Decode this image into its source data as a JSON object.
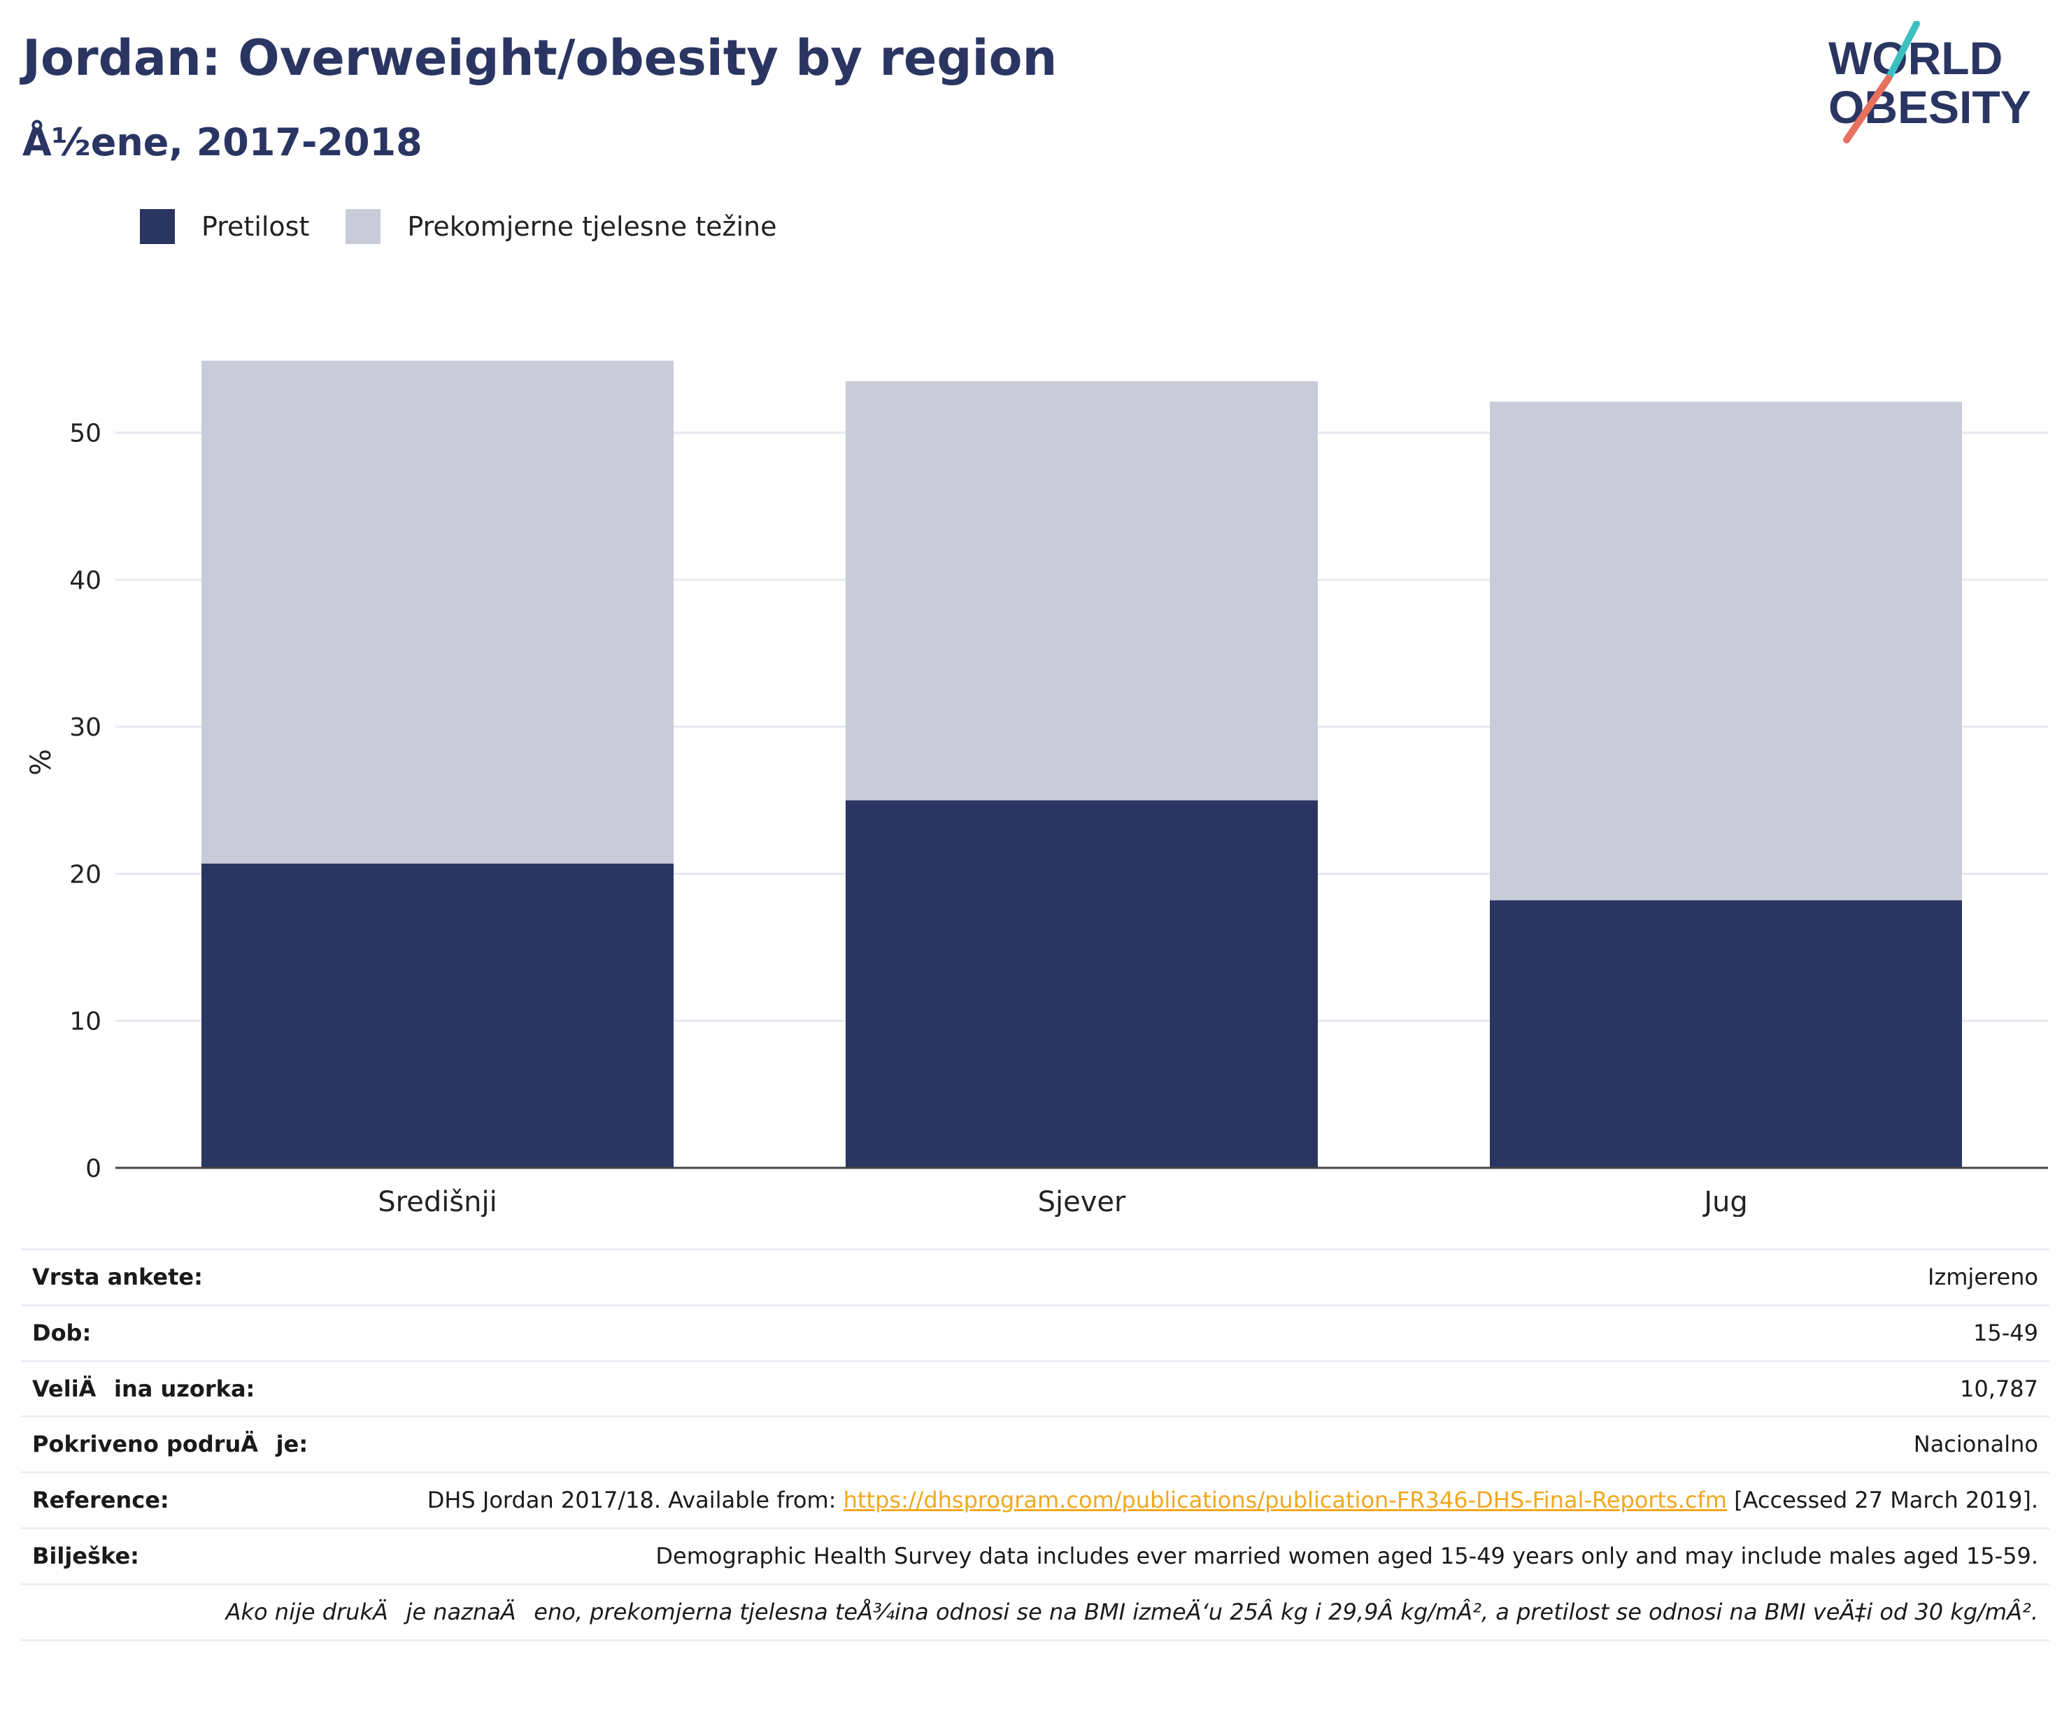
{
  "header": {
    "title": "Jordan: Overweight/obesity by region",
    "subtitle": "Å½ene, 2017-2018"
  },
  "logo": {
    "line1": "WORLD",
    "line2": "OBESITY"
  },
  "legend": [
    {
      "label": "Pretilost",
      "color": "#2a3562"
    },
    {
      "label": "Prekomjerne tjelesne težine",
      "color": "#c9ccd8"
    }
  ],
  "chart_data": {
    "type": "bar",
    "stacked": true,
    "categories": [
      "Središnji",
      "Sjever",
      "Jug"
    ],
    "series": [
      {
        "name": "Pretilost",
        "color": "#2a3562",
        "values": [
          20.7,
          25.0,
          18.2
        ]
      },
      {
        "name": "Prekomjerne tjelesne težine",
        "color": "#c9ccd8",
        "values": [
          34.2,
          28.5,
          33.9
        ]
      }
    ],
    "ylabel": "%",
    "ylim": [
      0,
      60
    ],
    "yticks": [
      0,
      10,
      20,
      30,
      40,
      50
    ],
    "grid": true,
    "legend_position": "top-left"
  },
  "info": {
    "survey_type": {
      "label": "Vrsta ankete:",
      "value": "Izmjereno"
    },
    "age": {
      "label": "Dob:",
      "value": "15-49"
    },
    "sample_size": {
      "label": "VeliÄina uzorka:",
      "value": "10,787"
    },
    "area": {
      "label": "Pokriveno podruÄje:",
      "value": "Nacionalno"
    },
    "reference": {
      "label": "Reference:",
      "prefix": "DHS Jordan 2017/18. Available from: ",
      "link": "https://dhsprogram.com/publications/publication-FR346-DHS-Final-Reports.cfm",
      "suffix": " [Accessed 27 March 2019]."
    },
    "notes": {
      "label": "Bilješke:",
      "value": "Demographic Health Survey data includes ever married women aged 15-49 years only and may include males aged 15-59."
    },
    "footnote": "Ako nije drukÄje naznaÄeno, prekomjerna tjelesna teÅ¾ina odnosi se na BMI izmeÄ‘u 25Â kg i 29,9Â kg/mÂ², a pretilost se odnosi na BMI veÄ‡i od 30 kg/mÂ²."
  }
}
